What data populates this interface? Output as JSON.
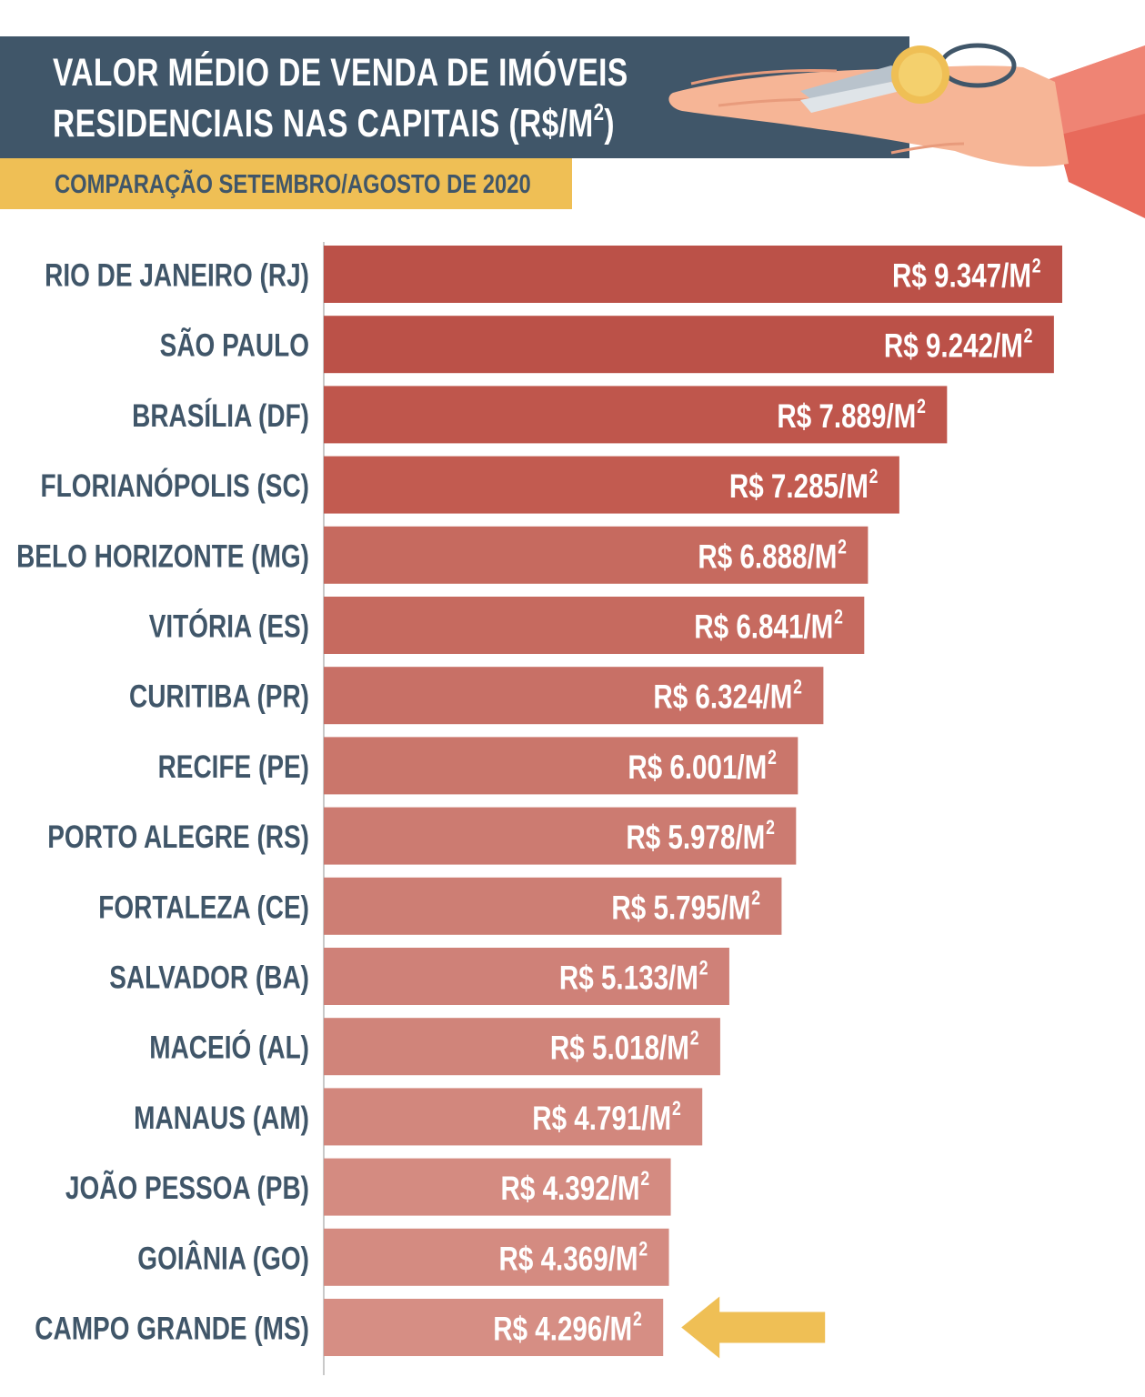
{
  "header": {
    "title_line1": "VALOR MÉDIO DE VENDA DE IMÓVEIS",
    "title_line2": "RESIDENCIAIS NAS CAPITAIS (R$/M",
    "title_sup": "2",
    "title_close": ")",
    "subtitle": "COMPARAÇÃO SETEMBRO/AGOSTO DE 2020"
  },
  "colors": {
    "header_band": "#405669",
    "subtitle_band": "#efbf55",
    "label_text": "#405669",
    "highlight_arrow": "#efbf55"
  },
  "icons": [
    "hand-icon",
    "keys-icon",
    "arrow-left-icon"
  ],
  "chart_data": {
    "type": "bar",
    "orientation": "horizontal",
    "categories": [
      "RIO DE JANEIRO (RJ)",
      "SÃO PAULO",
      "BRASÍLIA (DF)",
      "FLORIANÓPOLIS (SC)",
      "BELO HORIZONTE (MG)",
      "VITÓRIA (ES)",
      "CURITIBA (PR)",
      "RECIFE (PE)",
      "PORTO ALEGRE (RS)",
      "FORTALEZA (CE)",
      "SALVADOR (BA)",
      "MACEIÓ (AL)",
      "MANAUS (AM)",
      "JOÃO PESSOA (PB)",
      "GOIÂNIA (GO)",
      "CAMPO GRANDE (MS)"
    ],
    "values": [
      9347,
      9242,
      7889,
      7285,
      6888,
      6841,
      6324,
      6001,
      5978,
      5795,
      5133,
      5018,
      4791,
      4392,
      4369,
      4296
    ],
    "value_labels": [
      "R$ 9.347/M",
      "R$ 9.242/M",
      "R$ 7.889/M",
      "R$ 7.285/M",
      "R$ 6.888/M",
      "R$ 6.841/M",
      "R$ 6.324/M",
      "R$ 6.001/M",
      "R$ 5.978/M",
      "R$ 5.795/M",
      "R$ 5.133/M",
      "R$ 5.018/M",
      "R$ 4.791/M",
      "R$ 4.392/M",
      "R$ 4.369/M",
      "R$  4.296/M"
    ],
    "value_label_sup": "2",
    "bar_colors": [
      "#bb5148",
      "#bb5148",
      "#bf564c",
      "#c25b50",
      "#c66a5f",
      "#c66a5f",
      "#c87066",
      "#ca766b",
      "#cc7b71",
      "#cd7e74",
      "#cf8178",
      "#d0847a",
      "#d2877d",
      "#d48b81",
      "#d48b81",
      "#d68e84"
    ],
    "highlight": "CAMPO GRANDE (MS)",
    "xlim": [
      0,
      9347
    ]
  }
}
